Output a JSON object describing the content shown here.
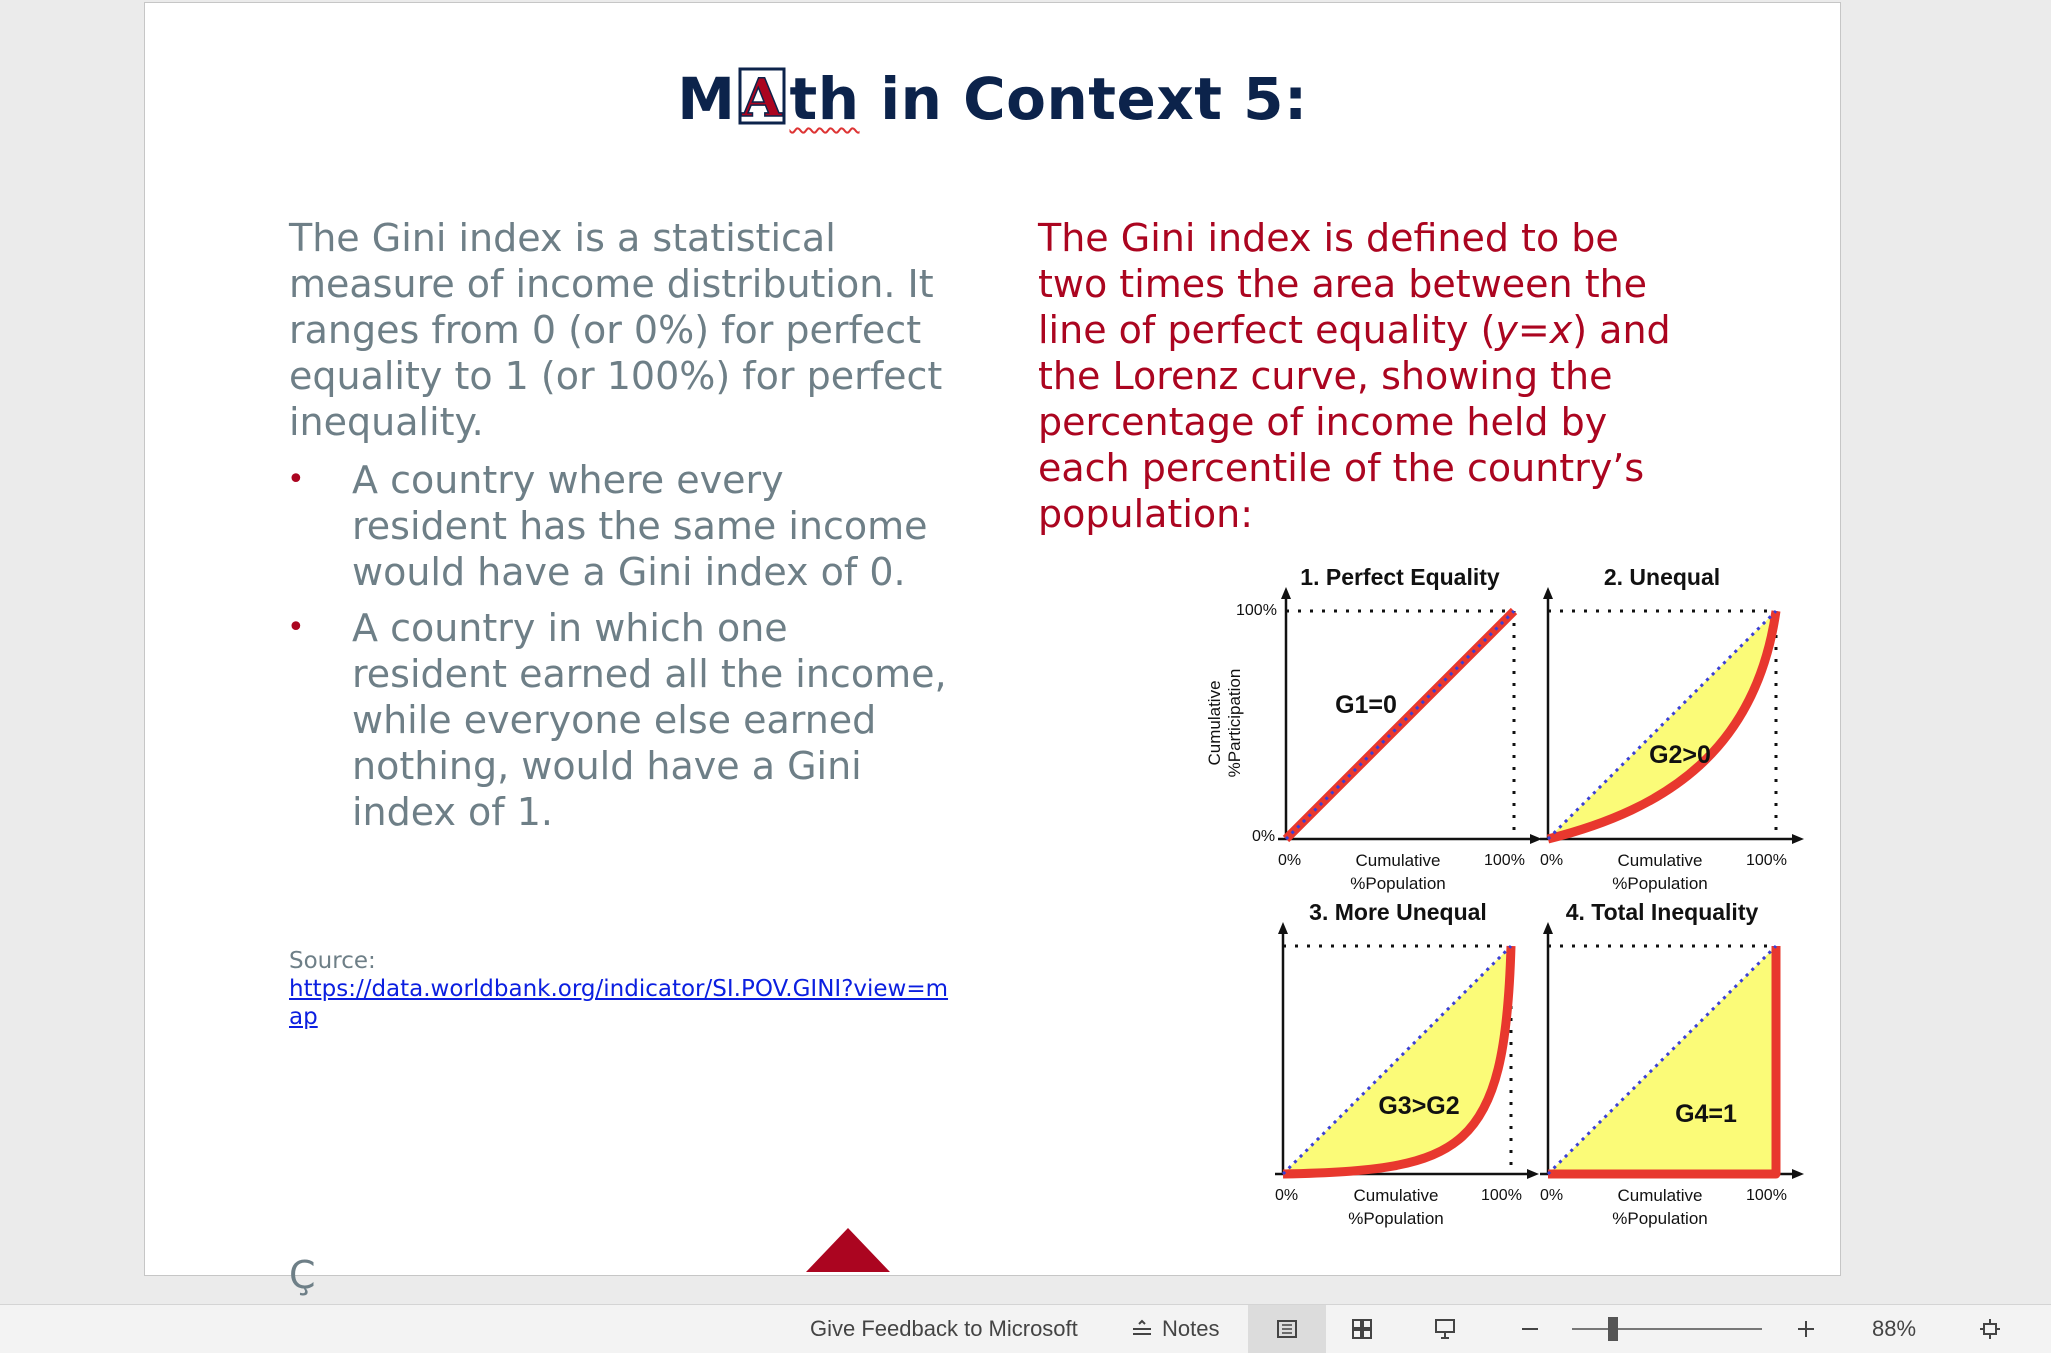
{
  "slide": {
    "title_prefix": "M",
    "title_logo_letter": "A",
    "title_squiggle": "th",
    "title_rest": " in Context 5:",
    "left_intro": "The Gini index is a statistical measure of income distribution. It ranges from 0 (or 0%) for perfect equality to 1 (or 100%) for perfect inequality.",
    "bullets": [
      "A country where every resident has the same income would have a Gini index of 0.",
      "A country in which one resident earned all the income, while everyone else earned nothing, would have a Gini index of 1."
    ],
    "bullet_glyph": "•",
    "source_label": "Source:",
    "source_link": "https://data.worldbank.org/indicator/SI.POV.GINI?view=map",
    "right_text_1": "The Gini index is defined to be two times the area between the line of perfect equality (",
    "right_text_y": "y",
    "right_text_eq": "=",
    "right_text_x": "x",
    "right_text_2": ") and the Lorenz curve, showing the percentage of income held by each percentile of the country’s population:",
    "stray_char": "Ç"
  },
  "figure": {
    "panels": [
      {
        "title": "1. Perfect Equality",
        "label": "G1=0",
        "has_y_label": true
      },
      {
        "title": "2. Unequal",
        "label": "G2>0",
        "has_y_label": false
      },
      {
        "title": "3. More Unequal",
        "label": "G3>G2",
        "has_y_label": false
      },
      {
        "title": "4. Total Inequality",
        "label": "G4=1",
        "has_y_label": false
      }
    ],
    "y_label_line1": "Cumulative",
    "y_label_line2": "%Participation",
    "y_tick_top": "100%",
    "y_tick_bottom": "0%",
    "x_tick_left": "0%",
    "x_tick_right": "100%",
    "x_label_line1": "Cumulative",
    "x_label_line2": "%Population",
    "colors": {
      "curve": "#e8382e",
      "fill": "#fbfb78",
      "equality": "#3a3fd6"
    }
  },
  "statusbar": {
    "feedback": "Give Feedback to Microsoft",
    "notes": "Notes",
    "zoom": "88%"
  },
  "colors": {
    "title": "#0c234b",
    "accent_red": "#ab0520",
    "body_gray": "#6e7f87",
    "link": "#0b1fe0"
  }
}
